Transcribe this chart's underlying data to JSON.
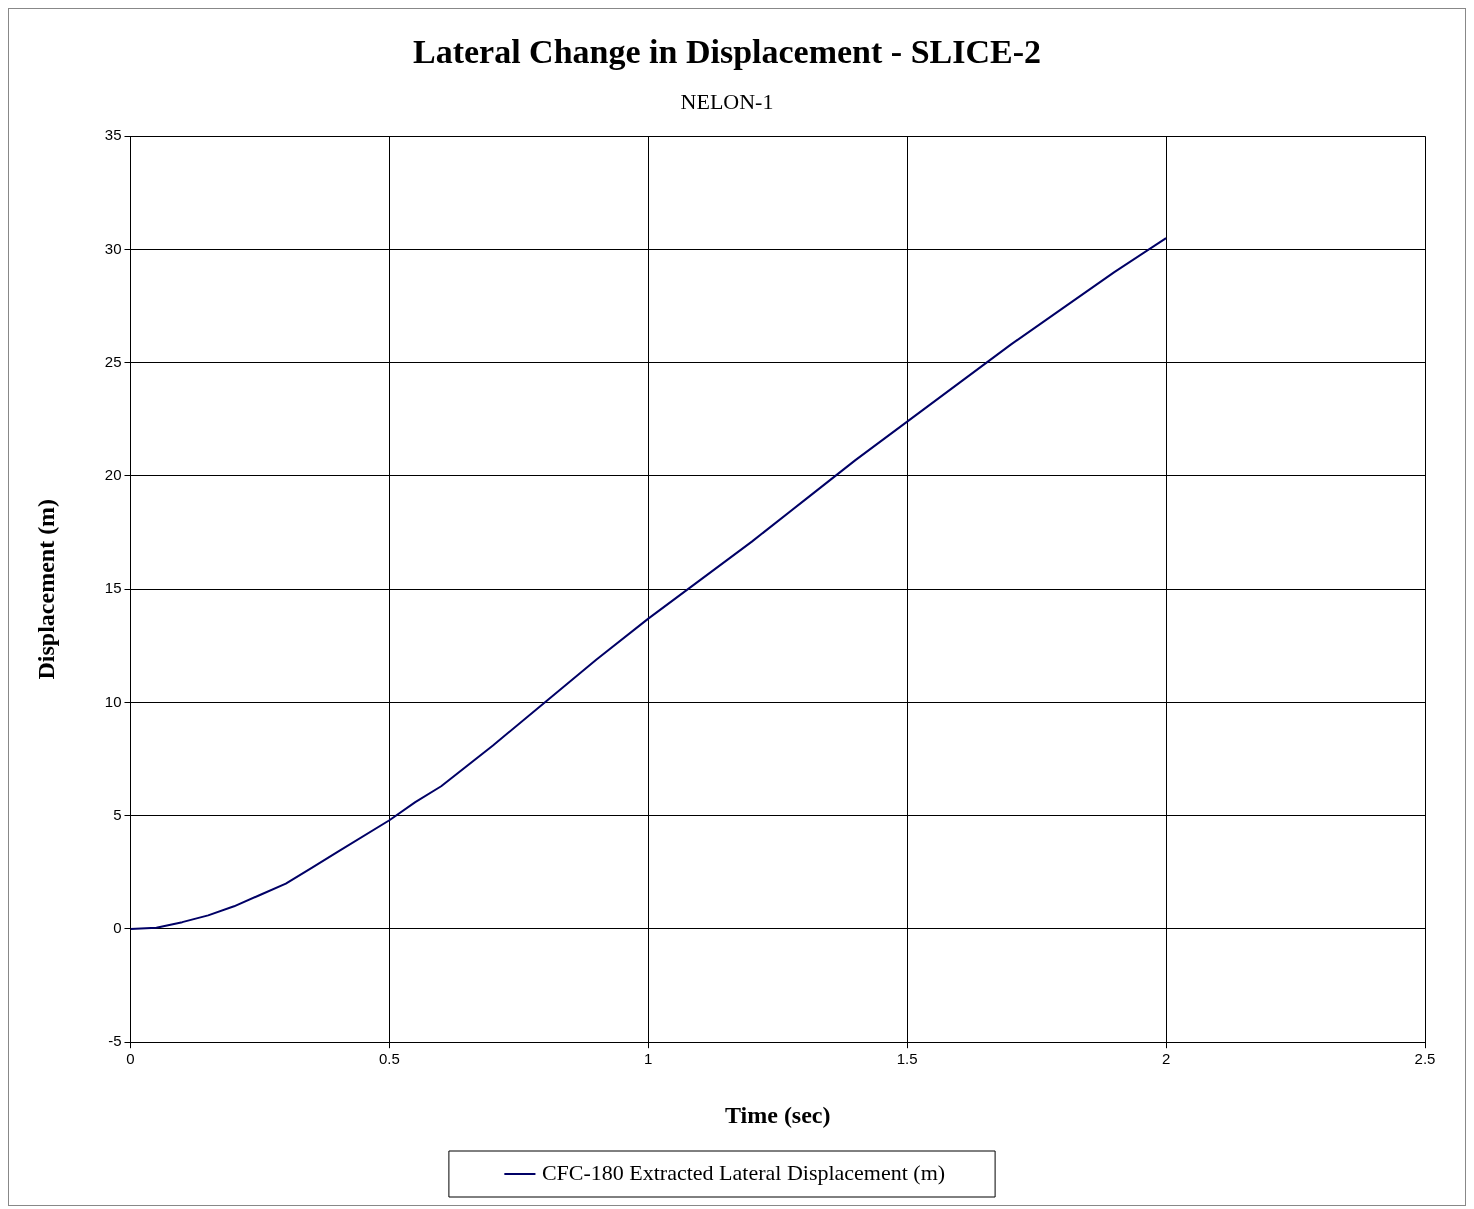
{
  "chart_data": {
    "type": "line",
    "title": "Lateral Change in Displacement - SLICE-2",
    "subtitle": "NELON-1",
    "xlabel": "Time (sec)",
    "ylabel": "Displacement (m)",
    "x": [
      0,
      0.05,
      0.1,
      0.15,
      0.2,
      0.25,
      0.3,
      0.35,
      0.4,
      0.5,
      0.55,
      0.6,
      0.7,
      0.8,
      0.9,
      1.0,
      1.1,
      1.2,
      1.3,
      1.4,
      1.5,
      1.6,
      1.7,
      1.8,
      1.9,
      2.0
    ],
    "series": [
      {
        "name": "CFC-180 Extracted Lateral Displacement (m)",
        "color": "#000066",
        "values": [
          0,
          0.05,
          0.3,
          0.6,
          1.0,
          1.5,
          2.0,
          2.7,
          3.4,
          4.8,
          5.6,
          6.3,
          8.1,
          10.0,
          11.9,
          13.7,
          15.4,
          17.1,
          18.9,
          20.7,
          22.4,
          24.1,
          25.8,
          27.4,
          29.0,
          30.5
        ]
      }
    ],
    "xlim": [
      0,
      2.5
    ],
    "xticks": [
      0,
      0.5,
      1,
      1.5,
      2,
      2.5
    ],
    "ylim": [
      -5,
      35
    ],
    "yticks": [
      -5,
      0,
      5,
      10,
      15,
      20,
      25,
      30,
      35
    ],
    "grid": true,
    "legend": "bottom",
    "marker": "none",
    "line_style": "solid"
  }
}
